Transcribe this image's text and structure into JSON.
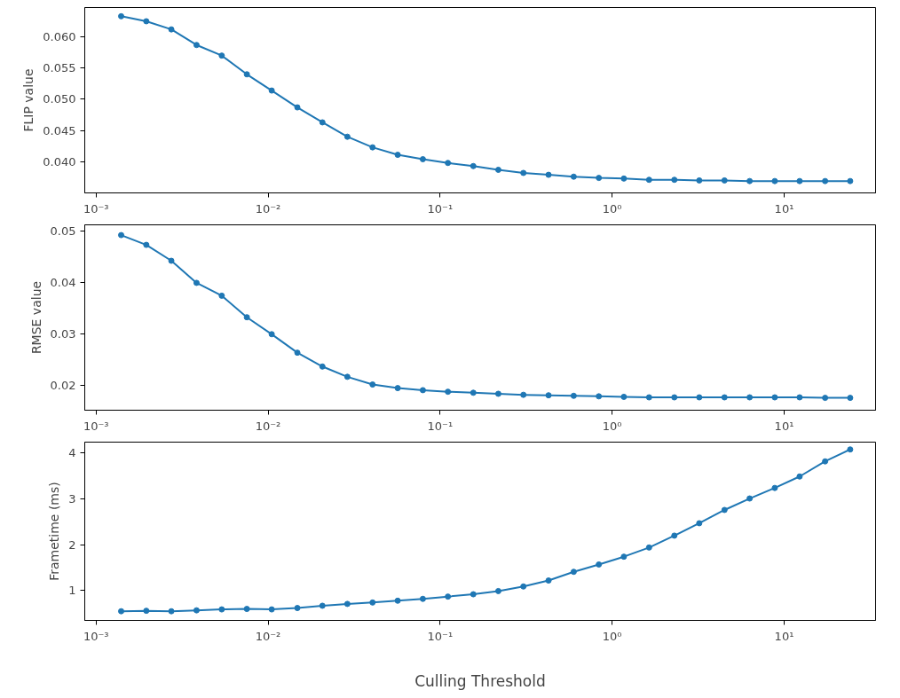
{
  "chart_data": [
    {
      "type": "line",
      "ylabel": "FLIP value",
      "log": "x",
      "grid": false,
      "marker": "circle",
      "line_style": "solid",
      "xlim": [
        0.00086,
        34
      ],
      "ylim": [
        0.035,
        0.0647
      ],
      "xticks": [
        {
          "value": 0.001,
          "label": "10⁻³"
        },
        {
          "value": 0.01,
          "label": "10⁻²"
        },
        {
          "value": 0.1,
          "label": "10⁻¹"
        },
        {
          "value": 1,
          "label": "10⁰"
        },
        {
          "value": 10,
          "label": "10¹"
        }
      ],
      "yticks": [
        {
          "value": 0.04,
          "label": "0.040"
        },
        0.045,
        {
          "value": 0.05,
          "label": "0.050"
        },
        0.055,
        {
          "value": 0.06,
          "label": "0.060"
        }
      ],
      "x": [
        0.0014,
        0.00196,
        0.00274,
        0.00384,
        0.00538,
        0.00753,
        0.0105,
        0.0148,
        0.0207,
        0.0289,
        0.0405,
        0.0567,
        0.0794,
        0.111,
        0.156,
        0.218,
        0.305,
        0.427,
        0.598,
        0.837,
        1.17,
        1.64,
        2.3,
        3.21,
        4.5,
        6.3,
        8.82,
        12.3,
        17.3,
        24.2
      ],
      "series": [
        {
          "color": "#1f77b4",
          "values": [
            0.0633,
            0.0625,
            0.0612,
            0.0587,
            0.057,
            0.054,
            0.0514,
            0.0487,
            0.0463,
            0.044,
            0.0423,
            0.0411,
            0.0404,
            0.0398,
            0.0393,
            0.0387,
            0.0382,
            0.0379,
            0.0376,
            0.0374,
            0.0373,
            0.0371,
            0.0371,
            0.037,
            0.037,
            0.0369,
            0.0369,
            0.0369,
            0.0369,
            0.0369
          ]
        }
      ]
    },
    {
      "type": "line",
      "ylabel": "RMSE value",
      "log": "x",
      "grid": false,
      "marker": "circle",
      "line_style": "solid",
      "xlim": [
        0.00086,
        34
      ],
      "ylim": [
        0.0151,
        0.0512
      ],
      "xticks": [
        {
          "value": 0.001,
          "label": "10⁻³"
        },
        {
          "value": 0.01,
          "label": "10⁻²"
        },
        {
          "value": 0.1,
          "label": "10⁻¹"
        },
        {
          "value": 1,
          "label": "10⁰"
        },
        {
          "value": 10,
          "label": "10¹"
        }
      ],
      "yticks": [
        0.02,
        0.03,
        0.04,
        0.05
      ],
      "x": [
        0.0014,
        0.00196,
        0.00274,
        0.00384,
        0.00538,
        0.00753,
        0.0105,
        0.0148,
        0.0207,
        0.0289,
        0.0405,
        0.0567,
        0.0794,
        0.111,
        0.156,
        0.218,
        0.305,
        0.427,
        0.598,
        0.837,
        1.17,
        1.64,
        2.3,
        3.21,
        4.5,
        6.3,
        8.82,
        12.3,
        17.3,
        24.2
      ],
      "series": [
        {
          "color": "#1f77b4",
          "values": [
            0.0492,
            0.0473,
            0.0442,
            0.0399,
            0.0374,
            0.0332,
            0.0299,
            0.0263,
            0.0236,
            0.0216,
            0.0201,
            0.0194,
            0.019,
            0.0187,
            0.0185,
            0.0183,
            0.0181,
            0.018,
            0.0179,
            0.0178,
            0.0177,
            0.0176,
            0.0176,
            0.0176,
            0.0176,
            0.0176,
            0.0176,
            0.0176,
            0.0175,
            0.0175
          ]
        }
      ]
    },
    {
      "type": "line",
      "ylabel": "Frametime (ms)",
      "xlabel": "Culling Threshold",
      "log": "x",
      "grid": false,
      "marker": "circle",
      "line_style": "solid",
      "xlim": [
        0.00086,
        34
      ],
      "ylim": [
        0.35,
        4.24
      ],
      "xticks": [
        {
          "value": 0.001,
          "label": "10⁻³"
        },
        {
          "value": 0.01,
          "label": "10⁻²"
        },
        {
          "value": 0.1,
          "label": "10⁻¹"
        },
        {
          "value": 1,
          "label": "10⁰"
        },
        {
          "value": 10,
          "label": "10¹"
        }
      ],
      "yticks": [
        1,
        2,
        3,
        4
      ],
      "x": [
        0.0014,
        0.00196,
        0.00274,
        0.00384,
        0.00538,
        0.00753,
        0.0105,
        0.0148,
        0.0207,
        0.0289,
        0.0405,
        0.0567,
        0.0794,
        0.111,
        0.156,
        0.218,
        0.305,
        0.427,
        0.598,
        0.837,
        1.17,
        1.64,
        2.3,
        3.21,
        4.5,
        6.3,
        8.82,
        12.3,
        17.3,
        24.2
      ],
      "series": [
        {
          "color": "#1f77b4",
          "values": [
            0.55,
            0.56,
            0.55,
            0.57,
            0.59,
            0.6,
            0.59,
            0.62,
            0.67,
            0.71,
            0.74,
            0.78,
            0.82,
            0.87,
            0.92,
            0.99,
            1.09,
            1.22,
            1.41,
            1.57,
            1.74,
            1.94,
            2.2,
            2.47,
            2.76,
            3.01,
            3.24,
            3.49,
            3.82,
            4.08
          ]
        }
      ]
    }
  ]
}
